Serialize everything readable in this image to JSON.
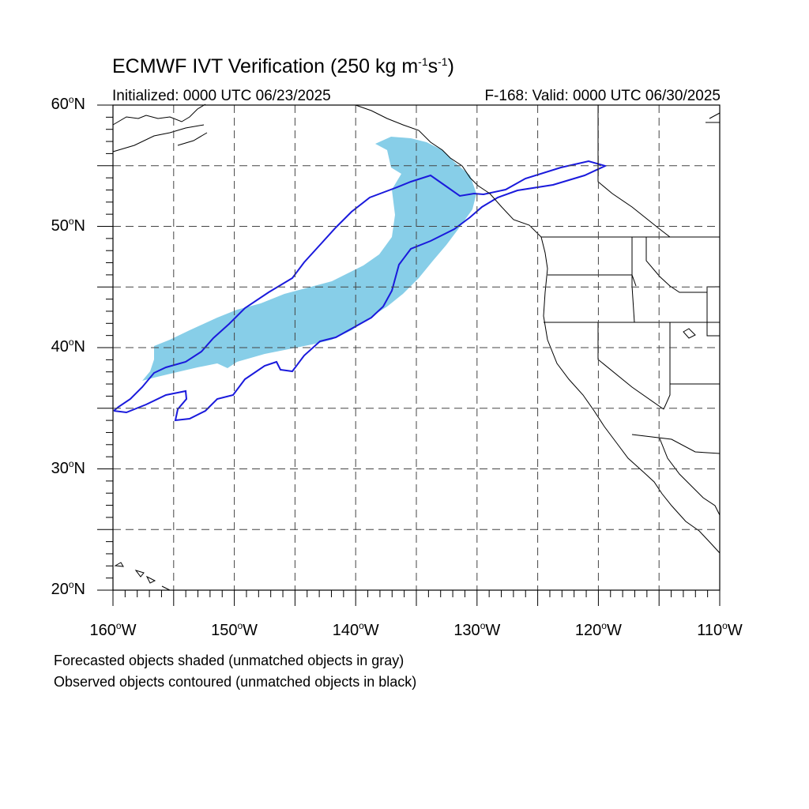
{
  "title": {
    "prefix": "ECMWF IVT Verification (250 kg m",
    "exp1": "-1",
    "mid": "s",
    "exp2": "-1",
    "suffix": ")"
  },
  "initialized": "Initialized: 0000 UTC 06/23/2025",
  "valid": "F-168: Valid: 0000 UTC 06/30/2025",
  "map": {
    "lon_range": [
      -160,
      -110
    ],
    "lat_range": [
      20,
      60
    ],
    "lat_labels": [
      {
        "num": "60",
        "deg": "o",
        "hemi": "N",
        "lat": 60
      },
      {
        "num": "50",
        "deg": "o",
        "hemi": "N",
        "lat": 50
      },
      {
        "num": "40",
        "deg": "o",
        "hemi": "N",
        "lat": 40
      },
      {
        "num": "30",
        "deg": "o",
        "hemi": "N",
        "lat": 30
      },
      {
        "num": "20",
        "deg": "o",
        "hemi": "N",
        "lat": 20
      }
    ],
    "lon_labels": [
      {
        "num": "160",
        "deg": "o",
        "hemi": "W",
        "lon": -160
      },
      {
        "num": "150",
        "deg": "o",
        "hemi": "W",
        "lon": -150
      },
      {
        "num": "140",
        "deg": "o",
        "hemi": "W",
        "lon": -140
      },
      {
        "num": "130",
        "deg": "o",
        "hemi": "W",
        "lon": -130
      },
      {
        "num": "120",
        "deg": "o",
        "hemi": "W",
        "lon": -120
      },
      {
        "num": "110",
        "deg": "o",
        "hemi": "W",
        "lon": -110
      }
    ],
    "grid_spacing_deg": 5,
    "forecast_color": "#87cee8",
    "observed_color": "#1a1adc",
    "coast_color": "#000000"
  },
  "notes": {
    "line1": "Forecasted objects shaded (unmatched objects in gray)",
    "line2": "Observed objects contoured (unmatched objects in black)"
  }
}
